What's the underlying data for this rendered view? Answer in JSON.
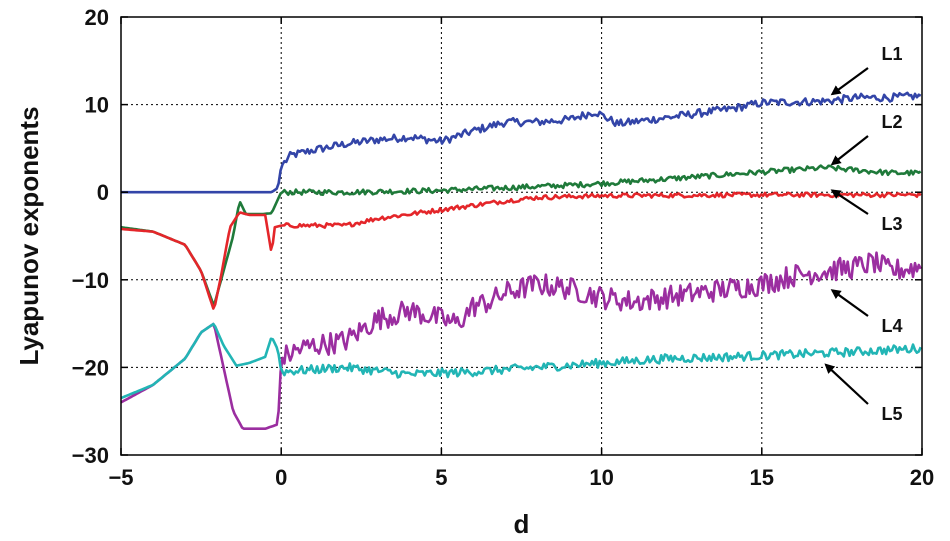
{
  "chart_data": {
    "type": "line",
    "title": "",
    "xlabel": "d",
    "ylabel": "Lyapunov exponents",
    "xlim": [
      -5,
      20
    ],
    "ylim": [
      -30,
      20
    ],
    "xticks": [
      -5,
      0,
      5,
      10,
      15,
      20
    ],
    "yticks": [
      -30,
      -20,
      -10,
      0,
      10,
      20
    ],
    "xtick_labels": [
      "−5",
      "0",
      "5",
      "10",
      "15",
      "20"
    ],
    "ytick_labels": [
      "−30",
      "−20",
      "−10",
      "0",
      "10",
      "20"
    ],
    "grid": true,
    "legend": "none",
    "series": [
      {
        "name": "L1",
        "color": "#3345a8",
        "x": [
          -5,
          -4,
          -3,
          -2,
          -1,
          -0.3,
          -0.1,
          0,
          0.3,
          1,
          2,
          3,
          4,
          5,
          6,
          7,
          8,
          9,
          9.8,
          10.5,
          12,
          13,
          14,
          15,
          16,
          17,
          18,
          19,
          20
        ],
        "y": [
          0,
          0,
          0,
          0,
          0,
          0,
          0.5,
          3,
          4.2,
          4.8,
          5.5,
          6,
          6.3,
          5.8,
          7,
          8,
          8,
          8.3,
          9.2,
          7.8,
          8.5,
          9,
          9.5,
          10.2,
          10.3,
          10.4,
          10.8,
          10.8,
          11
        ]
      },
      {
        "name": "L2",
        "color": "#1f7a3a",
        "x": [
          -5,
          -4,
          -3,
          -2.5,
          -2.1,
          -1.8,
          -1.5,
          -1.3,
          -1.1,
          -0.6,
          -0.3,
          -0.1,
          0,
          2,
          5,
          7,
          9,
          10,
          12,
          15,
          17,
          18,
          19,
          20
        ],
        "y": [
          -4,
          -4.5,
          -6,
          -9,
          -13,
          -9,
          -5,
          -1,
          -2.5,
          -2.5,
          -2.4,
          -0.8,
          0,
          0,
          0.2,
          0.5,
          0.8,
          1,
          1.5,
          2.3,
          2.8,
          2.5,
          2.2,
          2.2
        ]
      },
      {
        "name": "L3",
        "color": "#e4262a",
        "x": [
          -5,
          -4,
          -3,
          -2.5,
          -2.1,
          -1.9,
          -1.6,
          -1.3,
          -1,
          -0.5,
          -0.3,
          -0.2,
          0,
          2,
          3,
          4,
          5,
          6,
          7,
          8,
          10,
          15,
          20
        ],
        "y": [
          -4.2,
          -4.5,
          -6,
          -9,
          -13.5,
          -10,
          -4,
          -2.3,
          -2.6,
          -2.6,
          -7,
          -4,
          -3.8,
          -3.8,
          -3,
          -2.5,
          -2,
          -1.5,
          -1,
          -0.6,
          -0.4,
          -0.3,
          -0.3
        ]
      },
      {
        "name": "L4",
        "color": "#9b2ea0",
        "x": [
          -5,
          -4,
          -3,
          -2.5,
          -2.1,
          -1.8,
          -1.5,
          -1.2,
          -1,
          -0.5,
          -0.1,
          0,
          0.5,
          1,
          2,
          3,
          4,
          5,
          5.5,
          6,
          6.5,
          7,
          8,
          9,
          10,
          11,
          12,
          13,
          14,
          15,
          16,
          17,
          18,
          18.5,
          19,
          20
        ],
        "y": [
          -24,
          -22,
          -19,
          -16,
          -15,
          -20,
          -25,
          -27,
          -27,
          -27,
          -26.5,
          -19,
          -18,
          -17.5,
          -17,
          -14.5,
          -13.5,
          -14.5,
          -15,
          -13,
          -12.5,
          -11.5,
          -10.5,
          -11,
          -12,
          -12.5,
          -12,
          -11.5,
          -11,
          -10.5,
          -9.5,
          -9,
          -8.5,
          -8,
          -9,
          -8.5
        ]
      },
      {
        "name": "L5",
        "color": "#22b5b5",
        "x": [
          -5,
          -4,
          -3,
          -2.5,
          -2.1,
          -1.8,
          -1.4,
          -1,
          -0.5,
          -0.3,
          -0.1,
          0,
          2,
          4,
          6,
          8,
          10,
          12,
          14,
          16,
          18,
          20
        ],
        "y": [
          -23.5,
          -22,
          -19,
          -16,
          -15,
          -17.5,
          -19.8,
          -19.5,
          -18.8,
          -16.5,
          -18,
          -20.5,
          -20,
          -20.8,
          -20.5,
          -20,
          -19.5,
          -19,
          -18.8,
          -18.5,
          -18.2,
          -17.8
        ]
      }
    ],
    "annotations": [
      {
        "text": "L1",
        "target_x": 17.2,
        "target_y": 11.2
      },
      {
        "text": "L2",
        "target_x": 17.2,
        "target_y": 3.2
      },
      {
        "text": "L3",
        "target_x": 17.2,
        "target_y": 0.2
      },
      {
        "text": "L4",
        "target_x": 17.2,
        "target_y": -11.2
      },
      {
        "text": "L5",
        "target_x": 17.0,
        "target_y": -19.7
      }
    ]
  }
}
